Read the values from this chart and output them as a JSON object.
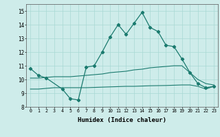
{
  "xlabel": "Humidex (Indice chaleur)",
  "x": [
    0,
    1,
    2,
    3,
    4,
    5,
    6,
    7,
    8,
    9,
    10,
    11,
    12,
    13,
    14,
    15,
    16,
    17,
    18,
    19,
    20,
    21,
    22,
    23
  ],
  "line1": [
    10.8,
    10.3,
    10.1,
    null,
    9.3,
    8.6,
    8.5,
    10.9,
    11.0,
    12.0,
    13.1,
    14.0,
    13.3,
    14.1,
    14.9,
    13.8,
    13.5,
    12.5,
    12.4,
    11.5,
    10.5,
    9.7,
    9.4,
    9.5
  ],
  "line2": [
    10.1,
    10.1,
    10.15,
    10.2,
    10.2,
    10.2,
    10.25,
    10.3,
    10.35,
    10.4,
    10.5,
    10.55,
    10.6,
    10.7,
    10.75,
    10.85,
    10.9,
    10.95,
    11.0,
    11.0,
    10.5,
    10.0,
    9.7,
    9.6
  ],
  "line3": [
    9.3,
    9.3,
    9.35,
    9.4,
    9.4,
    9.4,
    9.4,
    9.4,
    9.42,
    9.44,
    9.46,
    9.48,
    9.5,
    9.5,
    9.52,
    9.54,
    9.55,
    9.56,
    9.58,
    9.6,
    9.6,
    9.5,
    9.3,
    9.5
  ],
  "ylim": [
    8,
    15.5
  ],
  "xlim": [
    -0.5,
    23.5
  ],
  "yticks": [
    8,
    9,
    10,
    11,
    12,
    13,
    14,
    15
  ],
  "xticks": [
    0,
    1,
    2,
    3,
    4,
    5,
    6,
    7,
    8,
    9,
    10,
    11,
    12,
    13,
    14,
    15,
    16,
    17,
    18,
    19,
    20,
    21,
    22,
    23
  ],
  "line_color": "#1a7a6e",
  "bg_color": "#ceecea",
  "grid_color": "#a8d8d4"
}
